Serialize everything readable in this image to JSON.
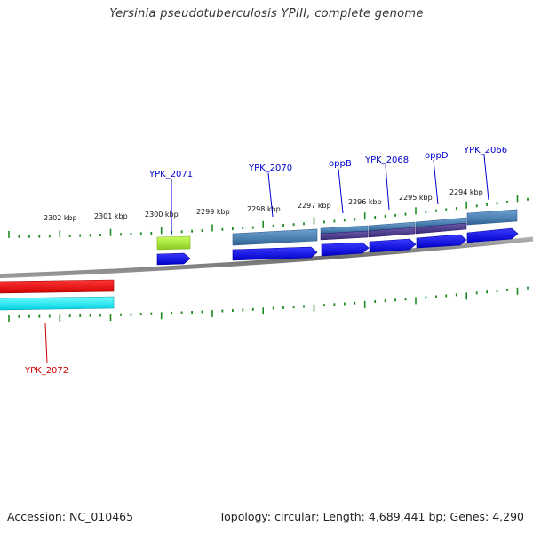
{
  "title": "Yersinia pseudotuberculosis YPIII, complete genome",
  "footer": {
    "accession": "Accession: NC_010465",
    "summary": "Topology: circular; Length: 4,689,441 bp; Genes: 4,290"
  },
  "colors": {
    "backbone": "#7a7a7a",
    "tick": "#1f8a1f",
    "forward_label": "#0000cc",
    "reverse_label": "#cc0000",
    "cds": "#0000ee",
    "gene_feature": "#4a7fb0",
    "operon_feature": "#4a3a8a",
    "rrna_feature": "#a8e63a",
    "reverse_gene": "#ee0000",
    "reverse_cds": "#00e5ee"
  },
  "ticks": {
    "labels": [
      "2302 kbp",
      "2301 kbp",
      "2300 kbp",
      "2299 kbp",
      "2298 kbp",
      "2297 kbp",
      "2296 kbp",
      "2295 kbp",
      "2294 kbp"
    ]
  },
  "genes": [
    {
      "name": "YPK_2071",
      "strand": "forward"
    },
    {
      "name": "YPK_2070",
      "strand": "forward"
    },
    {
      "name": "oppB",
      "strand": "forward"
    },
    {
      "name": "YPK_2068",
      "strand": "forward"
    },
    {
      "name": "oppD",
      "strand": "forward"
    },
    {
      "name": "YPK_2066",
      "strand": "forward"
    },
    {
      "name": "YPK_2072",
      "strand": "reverse"
    }
  ]
}
